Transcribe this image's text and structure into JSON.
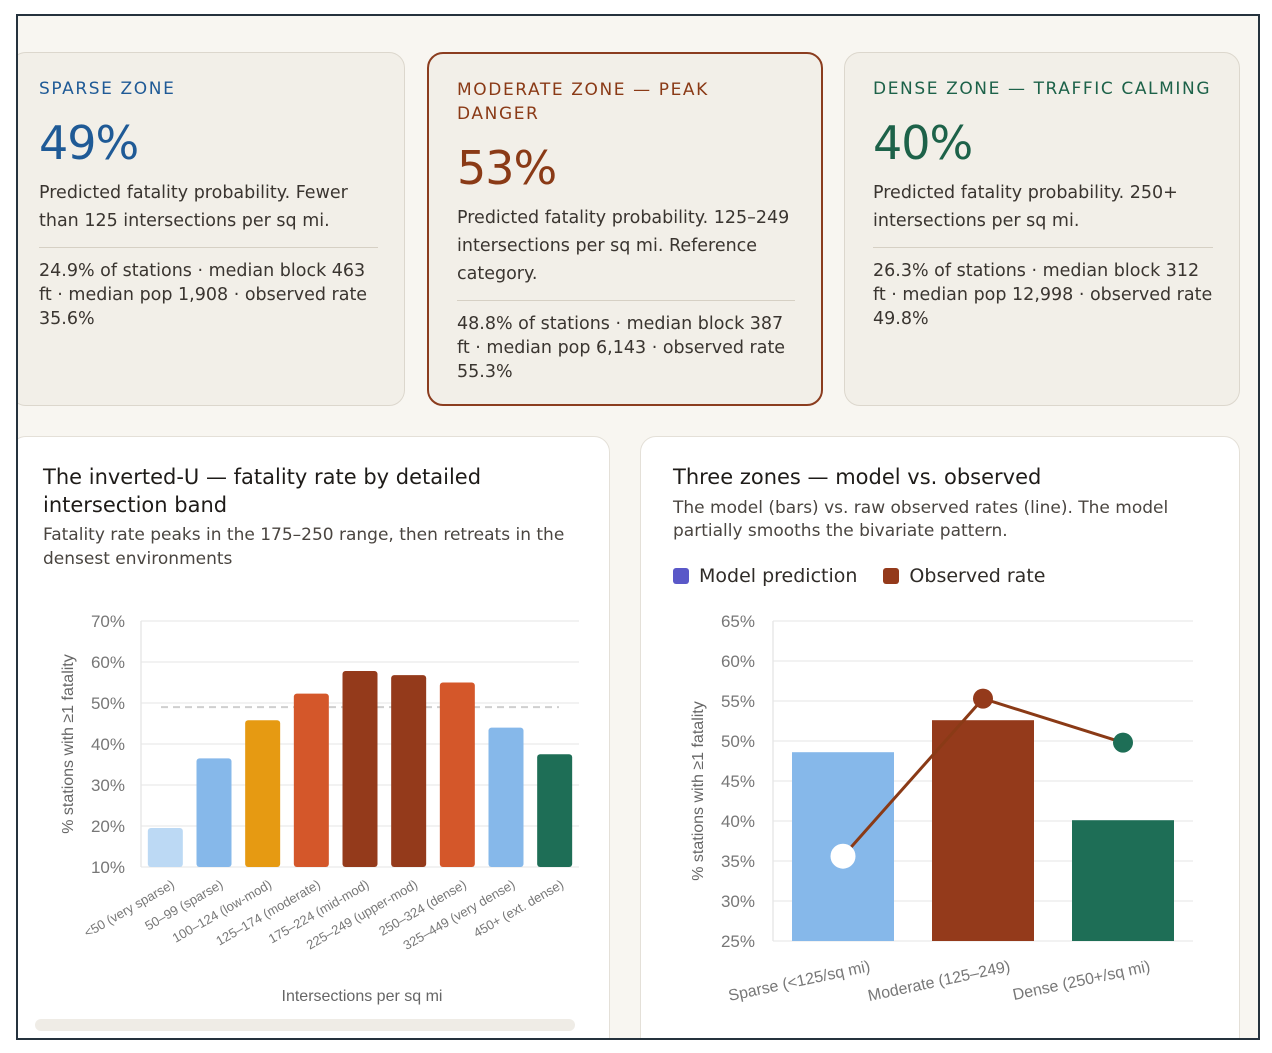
{
  "zones": [
    {
      "title": "SPARSE ZONE",
      "pct": "49%",
      "desc": "Predicted fatality probability. Fewer than 125 intersections per sq mi.",
      "stats": "24.9% of stations · median block 463 ft · median pop 1,908 · observed rate 35.6%"
    },
    {
      "title": "MODERATE ZONE — PEAK DANGER",
      "pct": "53%",
      "desc": "Predicted fatality probability. 125–249 intersections per sq mi. Reference category.",
      "stats": "48.8% of stations · median block 387 ft · median pop 6,143 · observed rate 55.3%"
    },
    {
      "title": "DENSE ZONE — TRAFFIC CALMING",
      "pct": "40%",
      "desc": "Predicted fatality probability. 250+ intersections per sq mi.",
      "stats": "26.3% of stations · median block 312 ft · median pop 12,998 · observed rate 49.8%"
    }
  ],
  "colors": {
    "sparse": "#1f5a96",
    "moderate": "#8a3a16",
    "dense": "#1d6249",
    "grid": "#e6e6e6",
    "reference_line": "#cfcfcf"
  },
  "left_panel": {
    "title": "The inverted-U — fatality rate by detailed intersection band",
    "subtitle": "Fatality rate peaks in the 175–250 range, then retreats in the densest environments"
  },
  "right_panel": {
    "title": "Three zones — model vs. observed",
    "subtitle": "The model (bars) vs. raw observed rates (line). The model partially smooths the bivariate pattern.",
    "legend": [
      {
        "label": "Model prediction",
        "color": "#5a58c8"
      },
      {
        "label": "Observed rate",
        "color": "#943a1b"
      }
    ]
  },
  "chart_data": [
    {
      "type": "bar",
      "title": "The inverted-U — fatality rate by detailed intersection band",
      "xlabel": "Intersections per sq mi",
      "ylabel": "% stations with ≥1 fatality",
      "ylim": [
        10,
        70
      ],
      "yticks": [
        "10%",
        "20%",
        "30%",
        "40%",
        "50%",
        "60%",
        "70%"
      ],
      "ytick_values": [
        10,
        20,
        30,
        40,
        50,
        60,
        70
      ],
      "grid": true,
      "reference_line": 49,
      "categories": [
        "<50 (very sparse)",
        "50–99 (sparse)",
        "100–124 (low-mod)",
        "125–174 (moderate)",
        "175–224 (mid-mod)",
        "225–249 (upper-mod)",
        "250–324 (dense)",
        "325–449 (very dense)",
        "450+ (ext. dense)"
      ],
      "values": [
        19.5,
        36.5,
        45.8,
        52.3,
        57.8,
        56.8,
        55.0,
        44.0,
        37.5
      ],
      "bar_colors": [
        "#bcd9f4",
        "#86b8ea",
        "#e69a12",
        "#d4572a",
        "#943a1b",
        "#943a1b",
        "#d4572a",
        "#86b8ea",
        "#1e6e56"
      ]
    },
    {
      "type": "bar",
      "title": "Three zones — model vs. observed",
      "ylabel": "% stations with ≥1 fatality",
      "ylim": [
        25,
        65
      ],
      "yticks": [
        "25%",
        "30%",
        "35%",
        "40%",
        "45%",
        "50%",
        "55%",
        "60%",
        "65%"
      ],
      "ytick_values": [
        25,
        30,
        35,
        40,
        45,
        50,
        55,
        60,
        65
      ],
      "grid": true,
      "categories": [
        "Sparse (<125/sq mi)",
        "Moderate (125–249)",
        "Dense (250+/sq mi)"
      ],
      "series": [
        {
          "name": "Model prediction",
          "values": [
            48.6,
            52.6,
            40.1
          ],
          "colors": [
            "#86b8ea",
            "#943a1b",
            "#1e6e56"
          ]
        },
        {
          "name": "Observed rate",
          "values": [
            35.6,
            55.3,
            49.8
          ],
          "colors": [
            "#ffffff",
            "#943a1b",
            "#1e6e56"
          ]
        }
      ]
    }
  ]
}
